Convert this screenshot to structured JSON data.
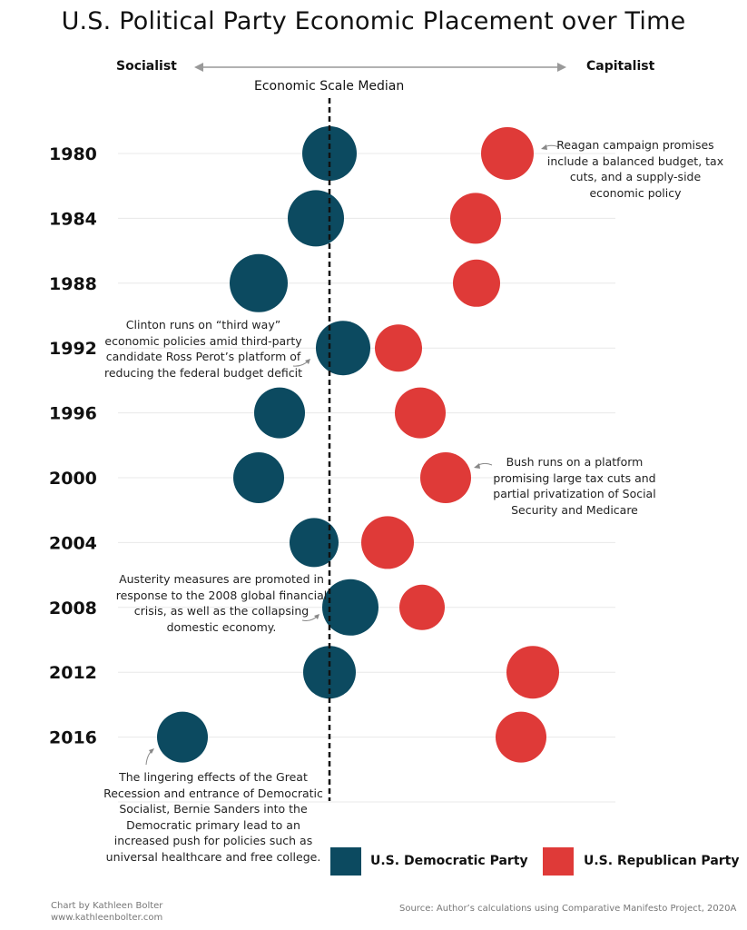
{
  "title": "U.S. Political Party Economic Placement over Time",
  "axis": {
    "left_label": "Socialist",
    "right_label": "Capitalist",
    "median_label": "Economic Scale Median"
  },
  "chart_data": {
    "type": "scatter",
    "title": "U.S. Political Party Economic Placement over Time",
    "categories": [
      "1980",
      "1984",
      "1988",
      "1992",
      "1996",
      "2000",
      "2004",
      "2008",
      "2012",
      "2016"
    ],
    "x_scale_description": "position relative to economic scale median (0); negative = Socialist, positive = Capitalist",
    "series": [
      {
        "name": "U.S. Democratic Party",
        "color": "#0c4a60",
        "values": [
          0,
          -15,
          -78,
          15,
          -55,
          -78,
          -17,
          23,
          0,
          -162
        ],
        "sizes": [
          30,
          31,
          32,
          30,
          28,
          28,
          27,
          31,
          29,
          28
        ]
      },
      {
        "name": "U.S. Republican Party",
        "color": "#df3a38",
        "values": [
          196,
          161,
          162,
          76,
          100,
          128,
          64,
          102,
          224,
          211
        ],
        "sizes": [
          29,
          28,
          26,
          26,
          28,
          28,
          29,
          25,
          29,
          28
        ]
      }
    ],
    "grid": true
  },
  "annotations": {
    "note_1980": "Reagan campaign promises include a balanced budget, tax cuts, and a supply-side economic policy",
    "note_1992": "Clinton runs on “third way” economic policies amid third-party candidate Ross Perot’s platform of reducing the federal budget deficit",
    "note_2000": "Bush runs on a platform promising large tax cuts and partial privatization of Social Security and Medicare",
    "note_2008": "Austerity measures are promoted in response to the 2008 global financial crisis, as well as the collapsing domestic economy.",
    "note_2016": "The lingering effects of the Great Recession and entrance of Democratic Socialist, Bernie Sanders into the Democratic primary lead to an increased push for policies such as universal healthcare and free college."
  },
  "legend": {
    "dem_label": "U.S. Democratic Party",
    "rep_label": "U.S. Republican Party",
    "dem_color": "#0c4a60",
    "rep_color": "#df3a38"
  },
  "credit": {
    "line1": "Chart by Kathleen Bolter",
    "line2": "www.kathleenbolter.com"
  },
  "source": "Source: Author’s calculations using Comparative Manifesto Project, 2020A"
}
